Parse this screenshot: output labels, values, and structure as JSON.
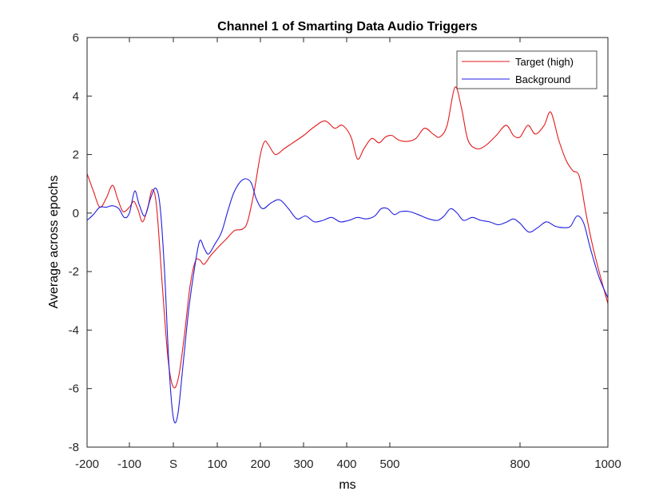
{
  "chart_data": {
    "type": "line",
    "title": "Channel 1 of Smarting Data Audio Triggers",
    "xlabel": "ms",
    "ylabel": "Average across epochs",
    "xlim": [
      -200,
      1000
    ],
    "ylim": [
      -8,
      6
    ],
    "x_ticks": [
      {
        "value": -200,
        "label": "-200"
      },
      {
        "value": -100,
        "label": "-100"
      },
      {
        "value": 0,
        "label": "S"
      },
      {
        "value": 100,
        "label": "100"
      },
      {
        "value": 200,
        "label": "200"
      },
      {
        "value": 300,
        "label": "300"
      },
      {
        "value": 400,
        "label": "400"
      },
      {
        "value": 500,
        "label": "500"
      },
      {
        "value": 800,
        "label": "800"
      },
      {
        "value": 1000,
        "label": "1000"
      }
    ],
    "x_axis_note": "x axis is non-linear (log-like spacing)",
    "y_ticks": [
      -8,
      -6,
      -4,
      -2,
      0,
      2,
      4,
      6
    ],
    "grid": false,
    "legend_position": "top-right",
    "series": [
      {
        "name": "Target (high)",
        "color": "#e41a1c",
        "points": [
          [
            -200,
            1.35
          ],
          [
            -185,
            0.75
          ],
          [
            -170,
            0.2
          ],
          [
            -155,
            0.5
          ],
          [
            -140,
            0.95
          ],
          [
            -128,
            0.5
          ],
          [
            -115,
            0.05
          ],
          [
            -100,
            0.2
          ],
          [
            -90,
            0.4
          ],
          [
            -80,
            0.1
          ],
          [
            -70,
            -0.3
          ],
          [
            -58,
            0.2
          ],
          [
            -48,
            0.8
          ],
          [
            -38,
            0.2
          ],
          [
            -25,
            -2.5
          ],
          [
            -12,
            -5.0
          ],
          [
            0,
            -5.95
          ],
          [
            12,
            -5.6
          ],
          [
            25,
            -4.2
          ],
          [
            38,
            -2.5
          ],
          [
            50,
            -1.65
          ],
          [
            60,
            -1.6
          ],
          [
            70,
            -1.75
          ],
          [
            85,
            -1.45
          ],
          [
            100,
            -1.2
          ],
          [
            120,
            -0.9
          ],
          [
            140,
            -0.6
          ],
          [
            158,
            -0.55
          ],
          [
            170,
            -0.3
          ],
          [
            185,
            0.7
          ],
          [
            200,
            2.0
          ],
          [
            210,
            2.45
          ],
          [
            220,
            2.3
          ],
          [
            235,
            2.0
          ],
          [
            255,
            2.2
          ],
          [
            275,
            2.4
          ],
          [
            300,
            2.65
          ],
          [
            325,
            2.95
          ],
          [
            350,
            3.15
          ],
          [
            372,
            2.9
          ],
          [
            390,
            3.0
          ],
          [
            410,
            2.6
          ],
          [
            425,
            1.85
          ],
          [
            440,
            2.2
          ],
          [
            458,
            2.55
          ],
          [
            475,
            2.4
          ],
          [
            490,
            2.6
          ],
          [
            505,
            2.65
          ],
          [
            520,
            2.5
          ],
          [
            540,
            2.45
          ],
          [
            560,
            2.55
          ],
          [
            580,
            2.9
          ],
          [
            600,
            2.7
          ],
          [
            615,
            2.6
          ],
          [
            632,
            3.0
          ],
          [
            650,
            4.3
          ],
          [
            665,
            3.6
          ],
          [
            680,
            2.5
          ],
          [
            700,
            2.2
          ],
          [
            720,
            2.3
          ],
          [
            745,
            2.65
          ],
          [
            768,
            3.0
          ],
          [
            785,
            2.65
          ],
          [
            800,
            2.6
          ],
          [
            818,
            3.0
          ],
          [
            835,
            2.7
          ],
          [
            855,
            3.0
          ],
          [
            870,
            3.45
          ],
          [
            888,
            2.5
          ],
          [
            905,
            1.8
          ],
          [
            920,
            1.45
          ],
          [
            935,
            1.25
          ],
          [
            950,
            0.0
          ],
          [
            965,
            -1.1
          ],
          [
            980,
            -2.0
          ],
          [
            1000,
            -3.1
          ]
        ]
      },
      {
        "name": "Background",
        "color": "#1f1fe0",
        "points": [
          [
            -200,
            -0.25
          ],
          [
            -185,
            -0.05
          ],
          [
            -170,
            0.2
          ],
          [
            -155,
            0.2
          ],
          [
            -140,
            0.25
          ],
          [
            -125,
            0.15
          ],
          [
            -112,
            -0.15
          ],
          [
            -100,
            0.0
          ],
          [
            -88,
            0.75
          ],
          [
            -78,
            0.3
          ],
          [
            -65,
            -0.1
          ],
          [
            -52,
            0.5
          ],
          [
            -40,
            0.85
          ],
          [
            -30,
            0.2
          ],
          [
            -20,
            -2.0
          ],
          [
            -10,
            -5.2
          ],
          [
            0,
            -7.0
          ],
          [
            10,
            -6.9
          ],
          [
            22,
            -5.2
          ],
          [
            35,
            -3.3
          ],
          [
            48,
            -1.9
          ],
          [
            60,
            -0.95
          ],
          [
            70,
            -1.2
          ],
          [
            80,
            -1.4
          ],
          [
            95,
            -1.05
          ],
          [
            110,
            -0.65
          ],
          [
            125,
            0.1
          ],
          [
            140,
            0.75
          ],
          [
            160,
            1.15
          ],
          [
            178,
            1.05
          ],
          [
            190,
            0.5
          ],
          [
            205,
            0.15
          ],
          [
            225,
            0.35
          ],
          [
            245,
            0.45
          ],
          [
            265,
            0.15
          ],
          [
            285,
            -0.2
          ],
          [
            305,
            -0.1
          ],
          [
            325,
            -0.3
          ],
          [
            345,
            -0.25
          ],
          [
            365,
            -0.15
          ],
          [
            385,
            -0.3
          ],
          [
            405,
            -0.25
          ],
          [
            425,
            -0.15
          ],
          [
            445,
            -0.2
          ],
          [
            465,
            -0.1
          ],
          [
            480,
            0.15
          ],
          [
            495,
            0.15
          ],
          [
            510,
            -0.05
          ],
          [
            525,
            0.05
          ],
          [
            545,
            0.05
          ],
          [
            565,
            -0.05
          ],
          [
            590,
            -0.2
          ],
          [
            610,
            -0.25
          ],
          [
            625,
            -0.1
          ],
          [
            640,
            0.15
          ],
          [
            655,
            0.0
          ],
          [
            670,
            -0.25
          ],
          [
            690,
            -0.15
          ],
          [
            710,
            -0.25
          ],
          [
            730,
            -0.3
          ],
          [
            750,
            -0.4
          ],
          [
            770,
            -0.3
          ],
          [
            785,
            -0.2
          ],
          [
            800,
            -0.35
          ],
          [
            820,
            -0.65
          ],
          [
            840,
            -0.5
          ],
          [
            860,
            -0.3
          ],
          [
            880,
            -0.45
          ],
          [
            900,
            -0.5
          ],
          [
            915,
            -0.45
          ],
          [
            930,
            -0.1
          ],
          [
            945,
            -0.35
          ],
          [
            960,
            -1.2
          ],
          [
            980,
            -2.2
          ],
          [
            1000,
            -2.9
          ]
        ]
      }
    ]
  }
}
